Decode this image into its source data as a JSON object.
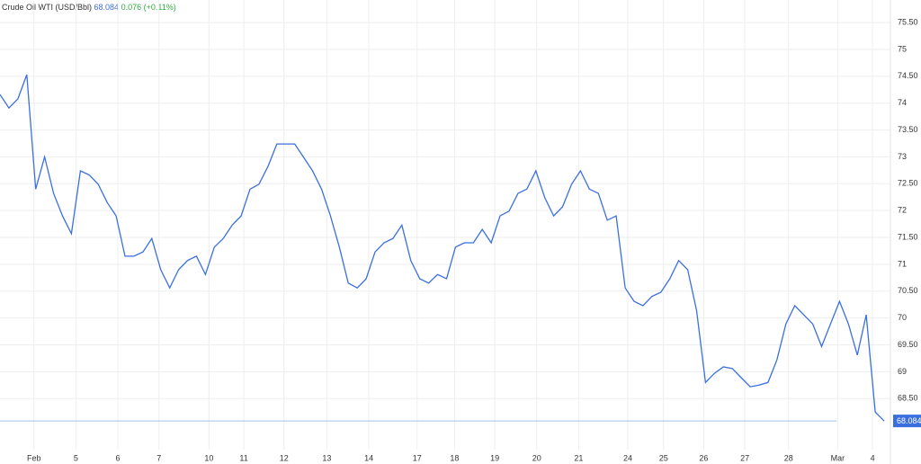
{
  "chart_data": {
    "type": "line",
    "title": "Crude Oil WTI (USD/Bbl)",
    "last_price": 68.084,
    "change": 0.076,
    "change_pct": "(+0.11%)",
    "series": [
      {
        "name": "Crude Oil WTI",
        "color": "#3a6fe0",
        "values": [
          74.16,
          73.91,
          74.08,
          74.53,
          72.4,
          73.0,
          72.32,
          71.9,
          71.57,
          72.74,
          72.66,
          72.49,
          72.15,
          71.9,
          71.15,
          71.15,
          71.23,
          71.48,
          70.9,
          70.56,
          70.9,
          71.07,
          71.15,
          70.81,
          71.32,
          71.48,
          71.73,
          71.9,
          72.4,
          72.49,
          72.82,
          73.24,
          73.24,
          73.24,
          72.99,
          72.74,
          72.4,
          71.9,
          71.32,
          70.65,
          70.56,
          70.73,
          71.23,
          71.4,
          71.48,
          71.73,
          71.07,
          70.73,
          70.65,
          70.81,
          70.73,
          71.32,
          71.4,
          71.4,
          71.65,
          71.4,
          71.9,
          71.99,
          72.32,
          72.4,
          72.74,
          72.24,
          71.9,
          72.07,
          72.49,
          72.74,
          72.4,
          72.32,
          71.82,
          71.9,
          70.56,
          70.31,
          70.23,
          70.4,
          70.48,
          70.73,
          71.07,
          70.9,
          70.14,
          68.8,
          68.97,
          69.09,
          69.06,
          68.89,
          68.72,
          68.75,
          68.8,
          69.22,
          69.89,
          70.23,
          70.06,
          69.89,
          69.47,
          69.89,
          70.31,
          69.89,
          69.31,
          70.06,
          68.25,
          68.084
        ]
      }
    ],
    "xlim": [
      0,
      99
    ],
    "ylim": [
      67.55,
      75.92
    ],
    "xticks": [
      {
        "value": 3.8,
        "label": "Feb"
      },
      {
        "value": 8.5,
        "label": "5"
      },
      {
        "value": 13.2,
        "label": "6"
      },
      {
        "value": 17.8,
        "label": "7"
      },
      {
        "value": 23.4,
        "label": "10"
      },
      {
        "value": 27.3,
        "label": "11"
      },
      {
        "value": 31.8,
        "label": "12"
      },
      {
        "value": 36.6,
        "label": "13"
      },
      {
        "value": 41.3,
        "label": "14"
      },
      {
        "value": 46.7,
        "label": "17"
      },
      {
        "value": 50.9,
        "label": "18"
      },
      {
        "value": 55.4,
        "label": "19"
      },
      {
        "value": 60.1,
        "label": "20"
      },
      {
        "value": 64.8,
        "label": "21"
      },
      {
        "value": 70.3,
        "label": "24"
      },
      {
        "value": 74.3,
        "label": "25"
      },
      {
        "value": 78.8,
        "label": "26"
      },
      {
        "value": 83.4,
        "label": "27"
      },
      {
        "value": 88.3,
        "label": "28"
      },
      {
        "value": 93.8,
        "label": "Mar"
      },
      {
        "value": 97.7,
        "label": "4"
      }
    ],
    "yticks": [
      {
        "value": 68.5,
        "label": "68.50"
      },
      69,
      {
        "value": 69.5,
        "label": "69.50"
      },
      70,
      {
        "value": 70.5,
        "label": "70.50"
      },
      71,
      {
        "value": 71.5,
        "label": "71.50"
      },
      72,
      {
        "value": 72.5,
        "label": "72.50"
      },
      73,
      {
        "value": 73.5,
        "label": "73.50"
      },
      74,
      {
        "value": 74.5,
        "label": "74.50"
      },
      75,
      {
        "value": 75.5,
        "label": "75.50"
      }
    ],
    "grid": true
  }
}
